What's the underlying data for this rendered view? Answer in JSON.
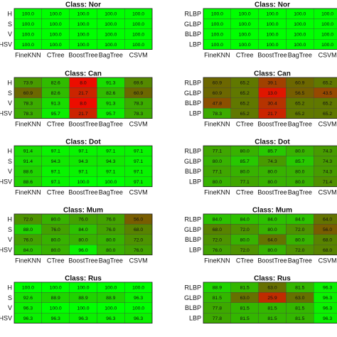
{
  "columns": [
    "FineKNN",
    "CTree",
    "BoostTree",
    "BagTree",
    "CSVM"
  ],
  "chart_data": [
    {
      "type": "heatmap",
      "title": "Class: Nor",
      "rows": [
        "H",
        "S",
        "V",
        "HSV"
      ],
      "values": [
        [
          100.0,
          100.0,
          100.0,
          100.0,
          100.0
        ],
        [
          100.0,
          100.0,
          100.0,
          100.0,
          100.0
        ],
        [
          100.0,
          100.0,
          100.0,
          100.0,
          100.0
        ],
        [
          100.0,
          100.0,
          100.0,
          100.0,
          100.0
        ]
      ],
      "show_col_labels": true
    },
    {
      "type": "heatmap",
      "title": "Class: Nor",
      "rows": [
        "RLBP",
        "GLBP",
        "BLBP",
        "LBP"
      ],
      "values": [
        [
          100.0,
          100.0,
          100.0,
          100.0,
          100.0
        ],
        [
          100.0,
          100.0,
          100.0,
          100.0,
          100.0
        ],
        [
          100.0,
          100.0,
          100.0,
          100.0,
          100.0
        ],
        [
          100.0,
          100.0,
          100.0,
          100.0,
          100.0
        ]
      ],
      "show_col_labels": true
    },
    {
      "type": "heatmap",
      "title": "Class: Can",
      "rows": [
        "H",
        "S",
        "V",
        "HSV"
      ],
      "values": [
        [
          73.9,
          82.6,
          8.0,
          91.3,
          69.6
        ],
        [
          60.9,
          82.6,
          21.7,
          82.6,
          60.9
        ],
        [
          78.3,
          91.3,
          8.0,
          91.3,
          78.3
        ],
        [
          78.3,
          95.7,
          21.7,
          95.7,
          78.3
        ]
      ],
      "show_col_labels": true
    },
    {
      "type": "heatmap",
      "title": "Class: Can",
      "rows": [
        "RLBP",
        "GLBP",
        "BLBP",
        "LBP"
      ],
      "values": [
        [
          60.9,
          65.2,
          39.1,
          60.9,
          65.2
        ],
        [
          60.9,
          65.2,
          13.0,
          56.5,
          43.5
        ],
        [
          47.8,
          65.2,
          30.4,
          65.2,
          65.2
        ],
        [
          78.3,
          65.2,
          21.7,
          65.2,
          65.2
        ]
      ],
      "show_col_labels": true
    },
    {
      "type": "heatmap",
      "title": "Class: Dot",
      "rows": [
        "H",
        "S",
        "V",
        "HSV"
      ],
      "values": [
        [
          91.4,
          97.1,
          97.1,
          97.1,
          97.1
        ],
        [
          91.4,
          94.3,
          94.3,
          94.3,
          97.1
        ],
        [
          88.6,
          97.1,
          97.1,
          97.1,
          97.1
        ],
        [
          88.6,
          97.1,
          100.0,
          100.0,
          97.1
        ]
      ],
      "show_col_labels": true
    },
    {
      "type": "heatmap",
      "title": "Class: Dot",
      "rows": [
        "RLBP",
        "GLBP",
        "BLBP",
        "LBP"
      ],
      "values": [
        [
          77.1,
          80.0,
          85.7,
          80.0,
          74.3
        ],
        [
          80.0,
          85.7,
          74.3,
          85.7,
          74.3
        ],
        [
          77.1,
          80.0,
          80.0,
          80.0,
          74.3
        ],
        [
          80.0,
          77.1,
          80.0,
          80.0,
          71.4
        ]
      ],
      "show_col_labels": true
    },
    {
      "type": "heatmap",
      "title": "Class: Mum",
      "rows": [
        "H",
        "S",
        "V",
        "HSV"
      ],
      "values": [
        [
          72.0,
          80.0,
          76.0,
          76.0,
          56.0
        ],
        [
          88.0,
          76.0,
          84.0,
          76.0,
          68.0
        ],
        [
          76.0,
          80.0,
          80.0,
          80.0,
          72.0
        ],
        [
          84.0,
          80.0,
          96.0,
          80.0,
          76.0
        ]
      ],
      "show_col_labels": true
    },
    {
      "type": "heatmap",
      "title": "Class: Mum",
      "rows": [
        "RLBP",
        "GLBP",
        "BLBP",
        "LBP"
      ],
      "values": [
        [
          84.0,
          84.0,
          84.0,
          84.0,
          64.0
        ],
        [
          68.0,
          72.0,
          80.0,
          72.0,
          56.0
        ],
        [
          72.0,
          80.0,
          64.0,
          80.0,
          68.0
        ],
        [
          76.0,
          72.0,
          80.0,
          72.0,
          68.0
        ]
      ],
      "show_col_labels": true
    },
    {
      "type": "heatmap",
      "title": "Class: Rus",
      "rows": [
        "H",
        "S",
        "V",
        "HSV"
      ],
      "values": [
        [
          100.0,
          100.0,
          100.0,
          100.0,
          100.0
        ],
        [
          92.6,
          88.9,
          88.9,
          88.9,
          96.3
        ],
        [
          96.3,
          100.0,
          100.0,
          100.0,
          100.0
        ],
        [
          96.3,
          96.3,
          96.3,
          96.3,
          96.3
        ]
      ],
      "show_col_labels": false
    },
    {
      "type": "heatmap",
      "title": "Class: Rus",
      "rows": [
        "RLBP",
        "GLBP",
        "BLBP",
        "LBP"
      ],
      "values": [
        [
          88.9,
          81.5,
          63.0,
          81.5,
          96.3
        ],
        [
          81.5,
          63.0,
          25.9,
          63.0,
          96.3
        ],
        [
          77.8,
          81.5,
          81.5,
          81.5,
          96.3
        ],
        [
          77.8,
          81.5,
          81.5,
          81.5,
          96.3
        ]
      ],
      "show_col_labels": false
    }
  ]
}
